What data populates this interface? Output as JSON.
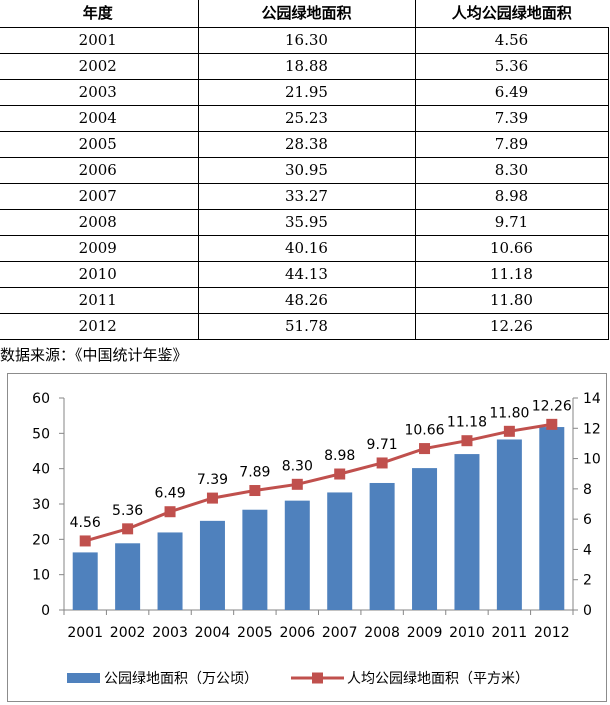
{
  "table": {
    "headers": [
      "年度",
      "公园绿地面积",
      "人均公园绿地面积"
    ],
    "rows": [
      [
        "2001",
        "16.30",
        "4.56"
      ],
      [
        "2002",
        "18.88",
        "5.36"
      ],
      [
        "2003",
        "21.95",
        "6.49"
      ],
      [
        "2004",
        "25.23",
        "7.39"
      ],
      [
        "2005",
        "28.38",
        "7.89"
      ],
      [
        "2006",
        "30.95",
        "8.30"
      ],
      [
        "2007",
        "33.27",
        "8.98"
      ],
      [
        "2008",
        "35.95",
        "9.71"
      ],
      [
        "2009",
        "40.16",
        "10.66"
      ],
      [
        "2010",
        "44.13",
        "11.18"
      ],
      [
        "2011",
        "48.26",
        "11.80"
      ],
      [
        "2012",
        "51.78",
        "12.26"
      ]
    ]
  },
  "source_note": "数据来源：《中国统计年鉴》",
  "colors": {
    "bar": "#4f81bd",
    "line": "#c0504d",
    "axis": "#868686"
  },
  "chart_data": {
    "type": "bar+line",
    "categories": [
      "2001",
      "2002",
      "2003",
      "2004",
      "2005",
      "2006",
      "2007",
      "2008",
      "2009",
      "2010",
      "2011",
      "2012"
    ],
    "series": [
      {
        "name": "公园绿地面积（万公顷）",
        "type": "bar",
        "axis": "left",
        "values": [
          16.3,
          18.88,
          21.95,
          25.23,
          28.38,
          30.95,
          33.27,
          35.95,
          40.16,
          44.13,
          48.26,
          51.78
        ]
      },
      {
        "name": "人均公园绿地面积（平方米）",
        "type": "line",
        "axis": "right",
        "values": [
          4.56,
          5.36,
          6.49,
          7.39,
          7.89,
          8.3,
          8.98,
          9.71,
          10.66,
          11.18,
          11.8,
          12.26
        ],
        "data_labels": [
          "4.56",
          "5.36",
          "6.49",
          "7.39",
          "7.89",
          "8.30",
          "8.98",
          "9.71",
          "10.66",
          "11.18",
          "11.80",
          "12.26"
        ]
      }
    ],
    "y_left": {
      "ticks": [
        "0",
        "10",
        "20",
        "30",
        "40",
        "50",
        "60"
      ],
      "ylim": [
        0,
        60
      ]
    },
    "y_right": {
      "ticks": [
        "0",
        "2",
        "4",
        "6",
        "8",
        "10",
        "12",
        "14"
      ],
      "ylim": [
        0,
        14
      ]
    },
    "grid": false,
    "legend": "bottom"
  }
}
